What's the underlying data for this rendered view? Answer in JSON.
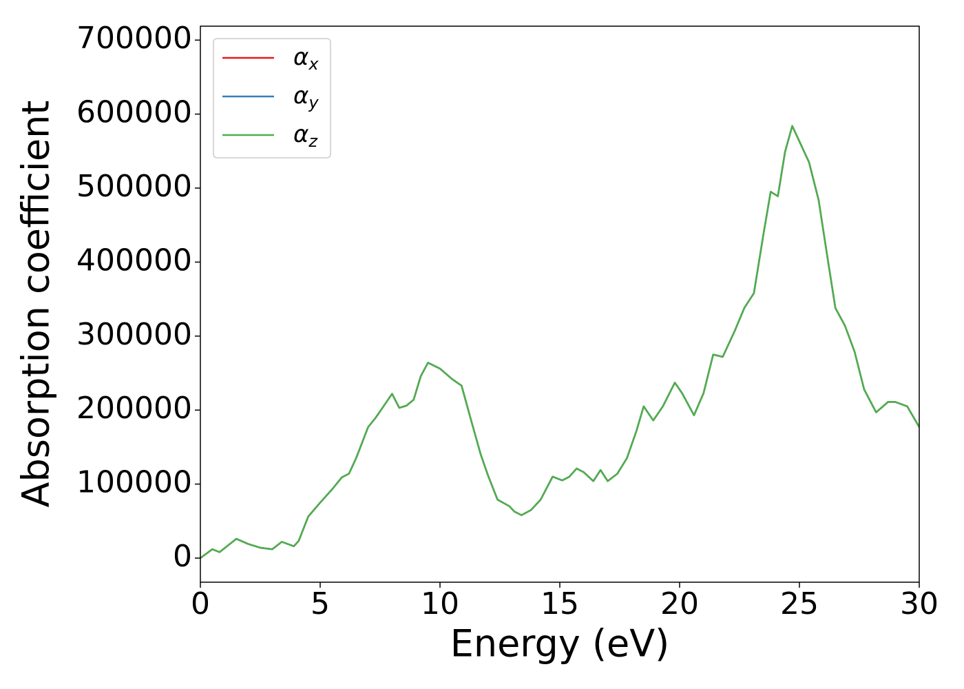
{
  "chart_data": {
    "type": "line",
    "xlabel": "Energy (eV)",
    "ylabel": "Absorption coefficient",
    "x": [
      0,
      0.5,
      0.8,
      1.5,
      2.0,
      2.5,
      3.0,
      3.4,
      3.9,
      4.1,
      4.5,
      5.0,
      5.5,
      5.9,
      6.2,
      6.5,
      7.0,
      7.3,
      7.6,
      8.0,
      8.3,
      8.6,
      8.9,
      9.2,
      9.5,
      10.0,
      10.5,
      10.9,
      11.3,
      11.7,
      12.0,
      12.4,
      12.9,
      13.1,
      13.4,
      13.8,
      14.2,
      14.7,
      15.1,
      15.4,
      15.7,
      16.0,
      16.4,
      16.7,
      17.0,
      17.4,
      17.8,
      18.2,
      18.5,
      18.9,
      19.3,
      19.8,
      20.1,
      20.6,
      21.0,
      21.4,
      21.8,
      22.3,
      22.7,
      23.1,
      23.5,
      23.8,
      24.1,
      24.4,
      24.7,
      25.0,
      25.4,
      25.8,
      26.2,
      26.5,
      26.9,
      27.3,
      27.7,
      28.2,
      28.7,
      29.0,
      29.5,
      30.0
    ],
    "series": [
      {
        "name": "αx",
        "color": "#e41a1c",
        "values": [
          0,
          12000,
          8000,
          26000,
          19000,
          14000,
          12000,
          22000,
          16000,
          23000,
          56000,
          75000,
          93000,
          109000,
          114000,
          135000,
          177000,
          189000,
          203000,
          222000,
          203000,
          206000,
          214000,
          246000,
          264000,
          256000,
          242000,
          233000,
          186000,
          140000,
          112000,
          79000,
          70000,
          63000,
          58000,
          65000,
          79000,
          110000,
          105000,
          110000,
          121000,
          116000,
          104000,
          119000,
          104000,
          114000,
          135000,
          172000,
          205000,
          186000,
          205000,
          237000,
          223000,
          193000,
          223000,
          275000,
          272000,
          307000,
          338000,
          358000,
          438000,
          495000,
          489000,
          549000,
          584000,
          563000,
          535000,
          484000,
          400000,
          338000,
          314000,
          279000,
          228000,
          197000,
          211000,
          211000,
          205000,
          177000
        ]
      },
      {
        "name": "αy",
        "color": "#377eb8",
        "values": [
          0,
          12000,
          8000,
          26000,
          19000,
          14000,
          12000,
          22000,
          16000,
          23000,
          56000,
          75000,
          93000,
          109000,
          114000,
          135000,
          177000,
          189000,
          203000,
          222000,
          203000,
          206000,
          214000,
          246000,
          264000,
          256000,
          242000,
          233000,
          186000,
          140000,
          112000,
          79000,
          70000,
          63000,
          58000,
          65000,
          79000,
          110000,
          105000,
          110000,
          121000,
          116000,
          104000,
          119000,
          104000,
          114000,
          135000,
          172000,
          205000,
          186000,
          205000,
          237000,
          223000,
          193000,
          223000,
          275000,
          272000,
          307000,
          338000,
          358000,
          438000,
          495000,
          489000,
          549000,
          584000,
          563000,
          535000,
          484000,
          400000,
          338000,
          314000,
          279000,
          228000,
          197000,
          211000,
          211000,
          205000,
          177000
        ]
      },
      {
        "name": "αz",
        "color": "#4daf4a",
        "values": [
          0,
          12000,
          8000,
          26000,
          19000,
          14000,
          12000,
          22000,
          16000,
          23000,
          56000,
          75000,
          93000,
          109000,
          114000,
          135000,
          177000,
          189000,
          203000,
          222000,
          203000,
          206000,
          214000,
          246000,
          264000,
          256000,
          242000,
          233000,
          186000,
          140000,
          112000,
          79000,
          70000,
          63000,
          58000,
          65000,
          79000,
          110000,
          105000,
          110000,
          121000,
          116000,
          104000,
          119000,
          104000,
          114000,
          135000,
          172000,
          205000,
          186000,
          205000,
          237000,
          223000,
          193000,
          223000,
          275000,
          272000,
          307000,
          338000,
          358000,
          438000,
          495000,
          489000,
          549000,
          584000,
          563000,
          535000,
          484000,
          400000,
          338000,
          314000,
          279000,
          228000,
          197000,
          211000,
          211000,
          205000,
          177000
        ]
      }
    ],
    "xlim": [
      0,
      30
    ],
    "xticks": [
      0,
      5,
      10,
      15,
      20,
      25,
      30
    ],
    "ylim": [
      -32600,
      718800
    ],
    "yticks": [
      0,
      100000,
      200000,
      300000,
      400000,
      500000,
      600000,
      700000
    ],
    "legend": "upper left",
    "grid": false
  }
}
